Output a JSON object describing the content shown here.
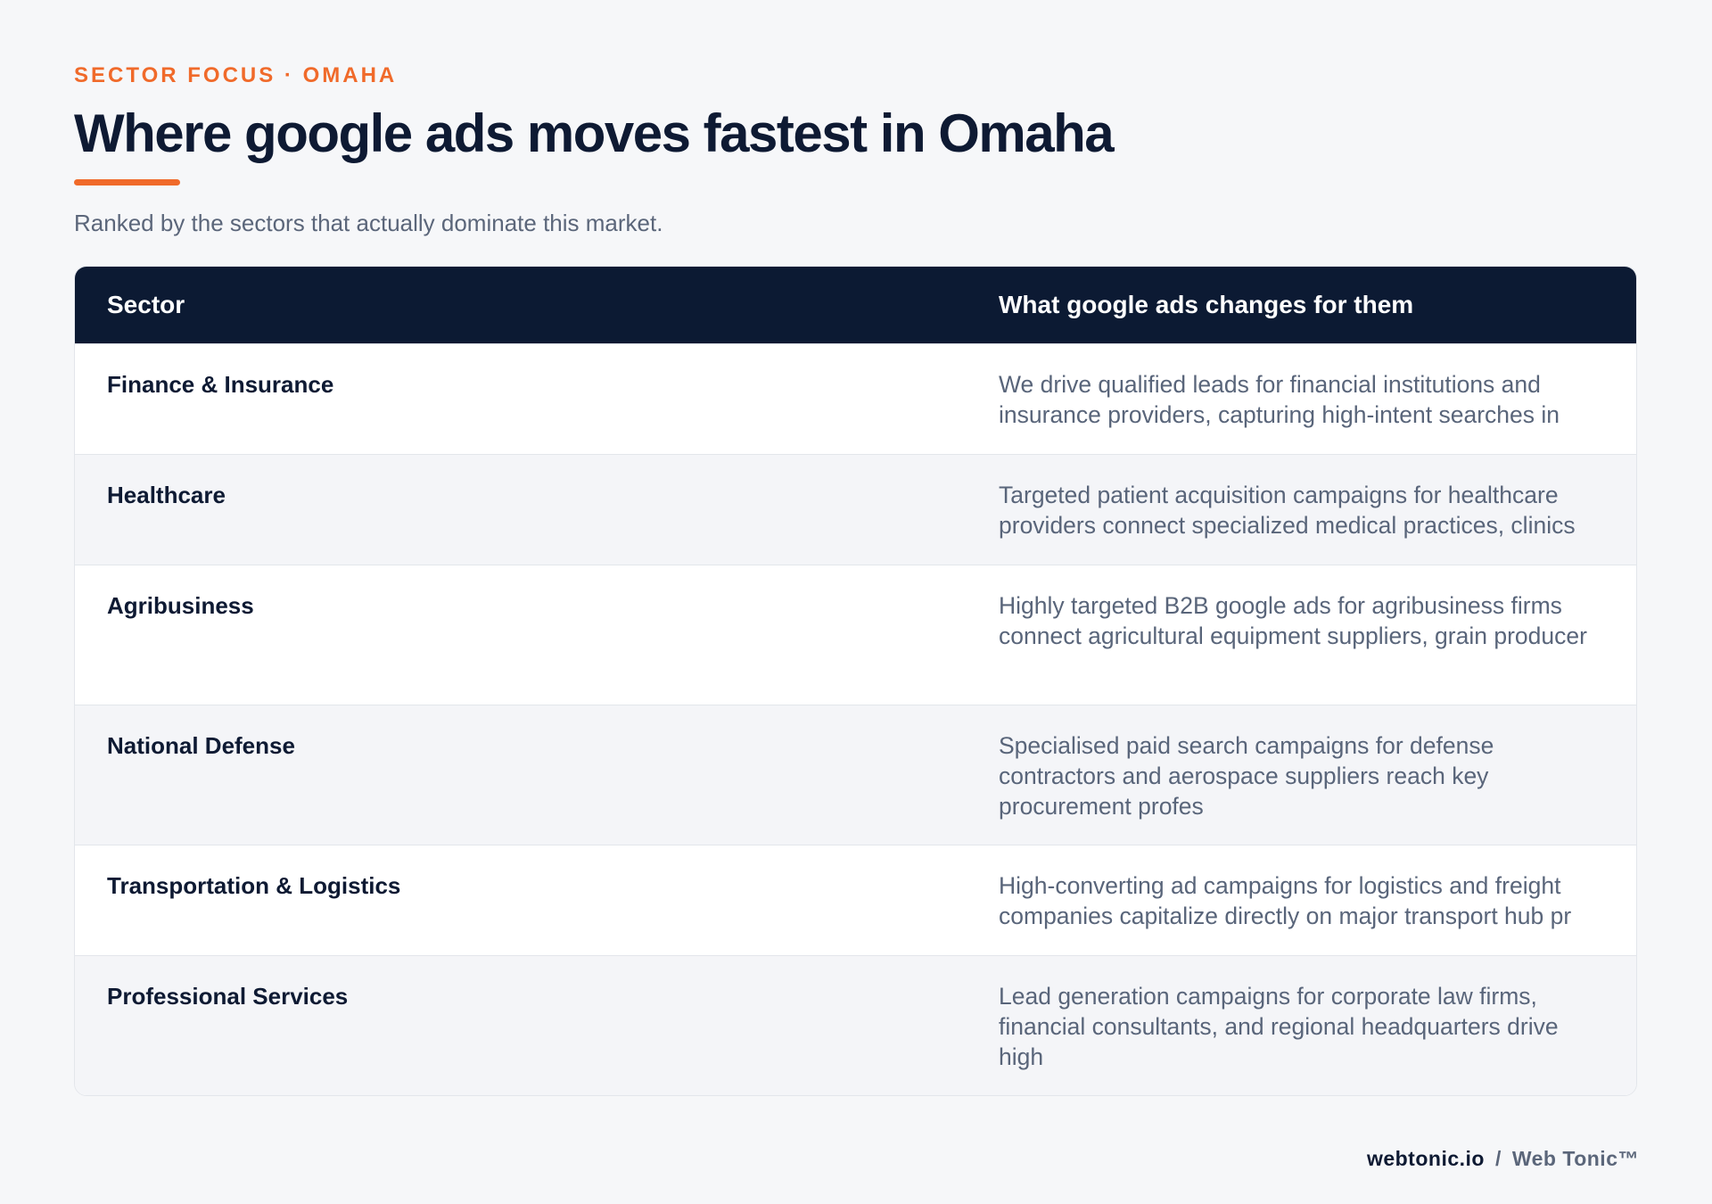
{
  "header": {
    "eyebrow": "SECTOR FOCUS · OMAHA",
    "title": "Where google ads moves fastest in Omaha",
    "subtitle": "Ranked by the sectors that actually dominate this market."
  },
  "table": {
    "columns": [
      "Sector",
      "What google ads changes for them"
    ],
    "rows": [
      {
        "sector": "Finance & Insurance",
        "description": "We drive qualified leads for financial institutions and insurance providers, capturing high-intent searches in"
      },
      {
        "sector": "Healthcare",
        "description": "Targeted patient acquisition campaigns for healthcare providers connect specialized medical practices, clinics"
      },
      {
        "sector": "Agribusiness",
        "description": "Highly targeted B2B google ads for agribusiness firms connect agricultural equipment suppliers, grain producer"
      },
      {
        "sector": "National Defense",
        "description": "Specialised paid search campaigns for defense contractors and aerospace suppliers reach key procurement profes"
      },
      {
        "sector": "Transportation & Logistics",
        "description": "High-converting ad campaigns for logistics and freight companies capitalize directly on major transport hub pr"
      },
      {
        "sector": "Professional Services",
        "description": "Lead generation campaigns for corporate law firms, financial consultants, and regional headquarters drive high"
      }
    ]
  },
  "footer": {
    "site": "webtonic.io",
    "separator": "/",
    "brand": "Web Tonic™"
  },
  "colors": {
    "accent": "#f06a2a",
    "navy": "#0c1a33",
    "background": "#f6f7f9",
    "muted_text": "#59657a"
  }
}
